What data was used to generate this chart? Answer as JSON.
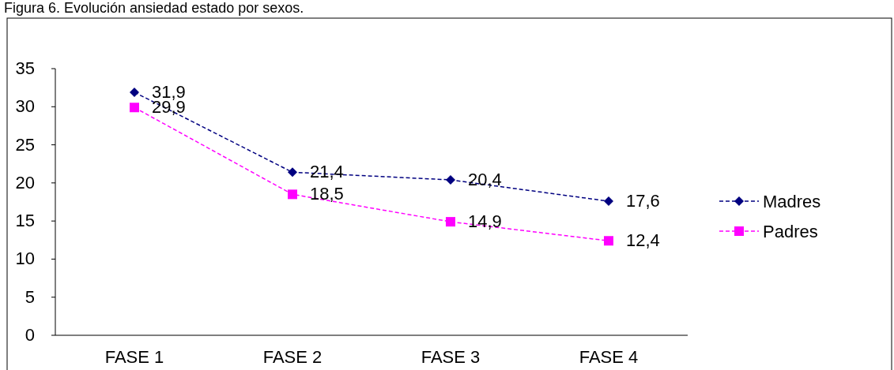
{
  "chart_data": {
    "type": "line",
    "title": "Figura 6. Evolución ansiedad estado por sexos.",
    "categories": [
      "FASE 1",
      "FASE 2",
      "FASE 3",
      "FASE 4"
    ],
    "series": [
      {
        "name": "Madres",
        "color": "#000080",
        "values": [
          31.9,
          21.4,
          20.4,
          17.6
        ],
        "value_labels": [
          "31,9",
          "21,4",
          "20,4",
          "17,6"
        ],
        "marker": "diamond"
      },
      {
        "name": "Padres",
        "color": "#ff00ff",
        "values": [
          29.9,
          18.5,
          14.9,
          12.4
        ],
        "value_labels": [
          "29,9",
          "18,5",
          "14,9",
          "12,4"
        ],
        "marker": "square"
      }
    ],
    "ylim": [
      0,
      35
    ],
    "yticks": [
      0,
      5,
      10,
      15,
      20,
      25,
      30,
      35
    ],
    "grid": false,
    "legend": "right",
    "line_style": "dashed"
  }
}
